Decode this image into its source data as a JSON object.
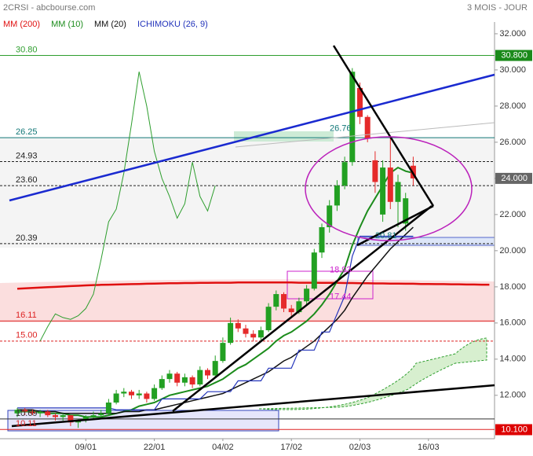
{
  "chart_data": {
    "type": "candlestick",
    "title": "2CRSI - abcbourse.com",
    "subtitle": "3 MOIS - JOUR",
    "categories": [
      null,
      null,
      null,
      null,
      null,
      null,
      null,
      null,
      null,
      "09/01",
      null,
      null,
      null,
      null,
      null,
      null,
      null,
      null,
      "22/01",
      null,
      null,
      null,
      null,
      null,
      null,
      null,
      null,
      "04/02",
      null,
      null,
      null,
      null,
      null,
      null,
      null,
      null,
      "17/02",
      null,
      null,
      null,
      null,
      null,
      null,
      null,
      null,
      "02/03",
      null,
      null,
      null,
      null,
      null,
      null,
      null,
      null,
      "16/03",
      null,
      null,
      null,
      null,
      null,
      null,
      null,
      null
    ],
    "open": [
      11.0,
      11.2,
      11.1,
      11.0,
      11.1,
      10.9,
      10.8,
      10.9,
      10.5,
      10.6,
      10.8,
      10.9,
      11.0,
      11.6,
      12.1,
      12.2,
      12.0,
      12.1,
      11.8,
      12.4,
      12.9,
      13.2,
      12.7,
      13.0,
      12.6,
      13.4,
      13.1,
      13.9,
      14.9,
      16.0,
      15.7,
      15.4,
      15.2,
      15.6,
      16.9,
      17.6,
      16.8,
      16.6,
      17.2,
      17.9,
      19.9,
      21.3,
      22.5,
      23.6,
      24.9,
      29.0,
      27.4,
      25.0,
      22.0,
      24.6,
      22.7,
      21.5,
      24.7,
      null,
      null,
      null,
      null,
      null,
      null,
      null,
      null,
      null,
      null
    ],
    "high": [
      11.3,
      11.3,
      11.2,
      11.2,
      11.2,
      11.0,
      11.0,
      10.9,
      10.7,
      10.9,
      11.1,
      11.2,
      11.8,
      12.3,
      12.4,
      12.3,
      12.3,
      12.2,
      12.6,
      13.1,
      13.4,
      13.3,
      13.2,
      13.1,
      13.6,
      13.5,
      14.2,
      15.2,
      16.3,
      16.2,
      15.9,
      15.6,
      15.8,
      17.1,
      17.8,
      17.7,
      17.0,
      17.4,
      18.1,
      20.1,
      21.5,
      22.8,
      23.9,
      25.2,
      30.1,
      29.3,
      27.5,
      25.5,
      25.0,
      26.3,
      24.2,
      23.2,
      25.2,
      null,
      null,
      null,
      null,
      null,
      null,
      null,
      null,
      null,
      null
    ],
    "low": [
      10.8,
      10.9,
      10.9,
      10.8,
      10.8,
      10.6,
      10.6,
      10.3,
      10.2,
      10.5,
      10.7,
      10.8,
      10.9,
      11.5,
      11.9,
      11.8,
      11.8,
      11.6,
      11.7,
      12.3,
      12.7,
      12.5,
      12.5,
      12.4,
      12.5,
      12.9,
      13.0,
      13.8,
      14.8,
      15.5,
      15.2,
      15.0,
      15.0,
      15.5,
      16.7,
      16.6,
      16.4,
      16.5,
      17.0,
      17.8,
      19.6,
      21.0,
      22.2,
      23.4,
      24.7,
      27.0,
      26.0,
      23.2,
      21.6,
      22.3,
      21.3,
      21.1,
      23.6,
      null,
      null,
      null,
      null,
      null,
      null,
      null,
      null,
      null,
      null
    ],
    "close": [
      11.2,
      11.1,
      11.0,
      11.1,
      10.9,
      10.8,
      10.9,
      10.5,
      10.6,
      10.8,
      10.9,
      11.0,
      11.6,
      12.1,
      12.2,
      12.0,
      12.1,
      11.8,
      12.4,
      12.9,
      13.2,
      12.7,
      13.0,
      12.6,
      13.4,
      13.1,
      13.9,
      14.9,
      16.0,
      15.7,
      15.4,
      15.2,
      15.6,
      16.9,
      17.6,
      16.8,
      16.6,
      17.2,
      17.9,
      19.9,
      21.3,
      22.5,
      23.6,
      24.9,
      29.9,
      27.4,
      26.2,
      23.8,
      24.6,
      22.7,
      23.8,
      22.9,
      24.0,
      null,
      null,
      null,
      null,
      null,
      null,
      null,
      null,
      null,
      null
    ],
    "up_color": "#22a022",
    "down_color": "#e52a2a",
    "series": [
      {
        "name": "MM (200)",
        "color": "#e01010",
        "width": 2.5,
        "values": [
          17.9,
          17.92,
          17.94,
          17.96,
          17.98,
          18.0,
          18.02,
          18.04,
          18.06,
          18.08,
          18.1,
          18.11,
          18.12,
          18.13,
          18.14,
          18.15,
          18.16,
          18.17,
          18.18,
          18.19,
          18.2,
          18.2,
          18.21,
          18.21,
          18.22,
          18.22,
          18.23,
          18.23,
          18.23,
          18.24,
          18.24,
          18.24,
          18.24,
          18.24,
          18.24,
          18.24,
          18.24,
          18.23,
          18.23,
          18.23,
          18.22,
          18.22,
          18.22,
          18.21,
          18.21,
          18.2,
          18.2,
          18.19,
          18.19,
          18.18,
          18.18,
          18.17,
          18.17,
          18.16,
          18.16,
          18.15,
          18.15,
          18.14,
          18.14,
          18.13,
          18.13,
          18.12,
          18.12
        ]
      },
      {
        "name": "MM (10)",
        "color": "#1c8c1c",
        "width": 2,
        "values": [
          11.1,
          11.1,
          11.1,
          11.1,
          11.0,
          11.0,
          11.0,
          10.9,
          10.9,
          10.8,
          10.8,
          10.8,
          10.9,
          11.0,
          11.1,
          11.2,
          11.4,
          11.5,
          11.6,
          11.8,
          12.0,
          12.1,
          12.2,
          12.3,
          12.4,
          12.5,
          12.7,
          12.9,
          13.2,
          13.5,
          13.7,
          14.0,
          14.3,
          14.6,
          15.0,
          15.3,
          15.5,
          15.8,
          16.1,
          16.5,
          17.0,
          17.6,
          18.3,
          19.0,
          20.3,
          21.3,
          22.2,
          22.9,
          23.6,
          24.3,
          24.6,
          24.4,
          24.3,
          null,
          null,
          null,
          null,
          null,
          null,
          null,
          null,
          null,
          null
        ]
      },
      {
        "name": "MM (20)",
        "color": "#111111",
        "width": 1.5,
        "values": [
          11.2,
          11.2,
          11.2,
          11.1,
          11.1,
          11.1,
          11.0,
          11.0,
          11.0,
          11.0,
          11.0,
          11.0,
          11.0,
          11.0,
          11.1,
          11.1,
          11.1,
          11.2,
          11.2,
          11.3,
          11.4,
          11.5,
          11.6,
          11.7,
          11.8,
          11.9,
          12.0,
          12.1,
          12.3,
          12.5,
          12.7,
          12.9,
          13.1,
          13.3,
          13.6,
          13.9,
          14.1,
          14.4,
          14.7,
          15.0,
          15.4,
          15.8,
          16.2,
          16.7,
          17.4,
          18.0,
          18.6,
          19.1,
          19.6,
          20.1,
          20.5,
          20.9,
          21.3,
          null,
          null,
          null,
          null,
          null,
          null,
          null,
          null,
          null,
          null
        ]
      },
      {
        "name": "ICHIMOKU (26, 9)",
        "color": "#2233bb",
        "width": 1.2,
        "values": [
          11.3,
          11.3,
          11.3,
          11.3,
          11.3,
          11.3,
          11.3,
          11.3,
          11.3,
          11.3,
          11.3,
          11.3,
          11.3,
          11.2,
          11.2,
          11.2,
          11.2,
          11.2,
          11.2,
          11.8,
          11.8,
          11.8,
          11.8,
          11.8,
          11.8,
          12.2,
          12.2,
          12.2,
          12.2,
          12.8,
          12.8,
          12.8,
          12.8,
          13.5,
          13.5,
          13.5,
          13.5,
          14.5,
          14.5,
          14.5,
          15.5,
          15.5,
          16.5,
          17.5,
          19.7,
          20.8,
          20.8,
          20.8,
          20.8,
          20.8,
          20.8,
          20.8,
          20.8,
          null,
          null,
          null,
          null,
          null,
          null,
          null,
          null,
          null,
          null
        ]
      },
      {
        "color": "#2e9e2e",
        "width": 1,
        "values": [
          null,
          null,
          null,
          15.0,
          15.8,
          16.5,
          16.3,
          16.2,
          16.4,
          16.8,
          17.6,
          19.5,
          21.6,
          22.3,
          24.3,
          27.0,
          29.9,
          28.0,
          25.5,
          24.0,
          23.0,
          21.8,
          22.6,
          24.9,
          23.0,
          22.2,
          23.6,
          null,
          null,
          null,
          null,
          null,
          null,
          null,
          null,
          null,
          null,
          null,
          null,
          null,
          null,
          null,
          null,
          null,
          null,
          null,
          null,
          null,
          null,
          null,
          null,
          null,
          null,
          null,
          null,
          null,
          null,
          null,
          null,
          null,
          null,
          null,
          null
        ]
      }
    ],
    "ylim": [
      9.6,
      32.65
    ],
    "yticks": [
      {
        "value": 12,
        "label": "12.000"
      },
      {
        "value": 14,
        "label": "14.000"
      },
      {
        "value": 16,
        "label": "16.000"
      },
      {
        "value": 18,
        "label": "18.000"
      },
      {
        "value": 20,
        "label": "20.000"
      },
      {
        "value": 22,
        "label": "22.000"
      },
      {
        "value": 24,
        "label": "24.000"
      },
      {
        "value": 26,
        "label": "26.000"
      },
      {
        "value": 28,
        "label": "28.000"
      },
      {
        "value": 30,
        "label": "30.000"
      },
      {
        "value": 32,
        "label": "32.000"
      }
    ],
    "levels": [
      {
        "value": 30.8,
        "label": "30.80",
        "color": "#2e9e2e",
        "style": "solid"
      },
      {
        "value": 26.25,
        "label": "26.25",
        "color": "#117777",
        "style": "solid"
      },
      {
        "value": 24.93,
        "label": "24.93",
        "color": "#222222",
        "style": "dashed"
      },
      {
        "value": 23.6,
        "label": "23.60",
        "color": "#222222",
        "style": "dashed"
      },
      {
        "value": 20.39,
        "label": "20.39",
        "color": "#222222",
        "style": "dashed"
      },
      {
        "value": 16.11,
        "label": "16.11",
        "color": "#dd2222",
        "style": "solid"
      },
      {
        "value": 15.0,
        "label": "15.00",
        "color": "#dd2222",
        "style": "dashed"
      },
      {
        "value": 10.69,
        "label": "10.69",
        "color": "#333333",
        "style": "solid"
      },
      {
        "value": 10.11,
        "label": "10.11",
        "color": "#dd2222",
        "style": "solid"
      }
    ],
    "price_tags": [
      {
        "value": 30.8,
        "label": "30.800",
        "color": "#1a8a1a"
      },
      {
        "value": 24.0,
        "label": "24.000",
        "color": "#666666"
      },
      {
        "value": 10.1,
        "label": "10.100",
        "color": "#dd0000"
      }
    ],
    "annotations": [
      {
        "value": 26.76,
        "color": "#117777"
      },
      {
        "value": 20.81,
        "color": "#117777"
      },
      {
        "value": 18.93,
        "color": "#cc22cc"
      },
      {
        "value": 17.44,
        "color": "#cc22cc"
      }
    ]
  }
}
